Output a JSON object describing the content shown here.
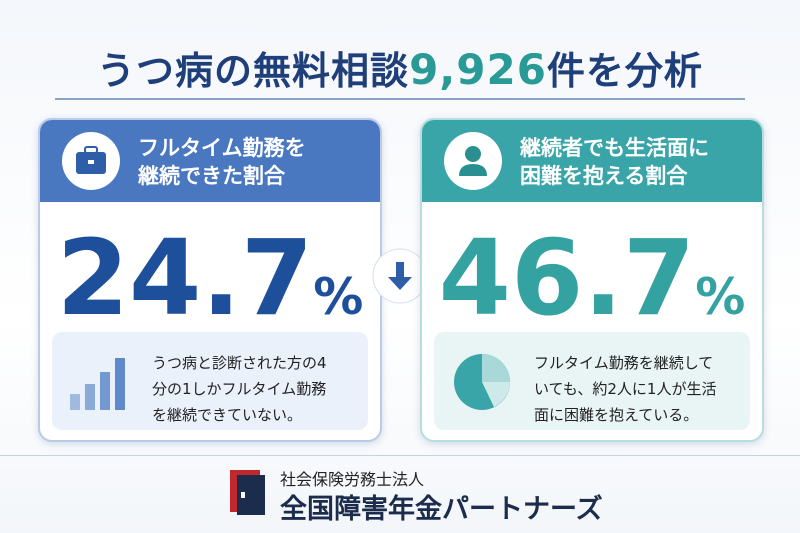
{
  "header": {
    "title_before": "うつ病の無料相談",
    "title_number": "9,926",
    "title_after": "件を分析"
  },
  "cards": [
    {
      "heading_lines": [
        "フルタイム勤務を",
        "継続できた割合"
      ],
      "value": "24.7",
      "unit": "%",
      "description_lines": [
        "うつ病と診断された方の4",
        "分の1しかフルタイム勤務",
        "を継続できていない。"
      ]
    },
    {
      "heading_lines": [
        "継続者でも生活面に",
        "困難を抱える割合"
      ],
      "value": "46.7",
      "unit": "%",
      "description_lines": [
        "フルタイム勤務を継続して",
        "いても、約2人に1人が生活",
        "面に困難を抱えている。"
      ]
    }
  ],
  "footer": {
    "org_type": "社会保険労務士法人",
    "org_name": "全国障害年金パートナーズ"
  }
}
